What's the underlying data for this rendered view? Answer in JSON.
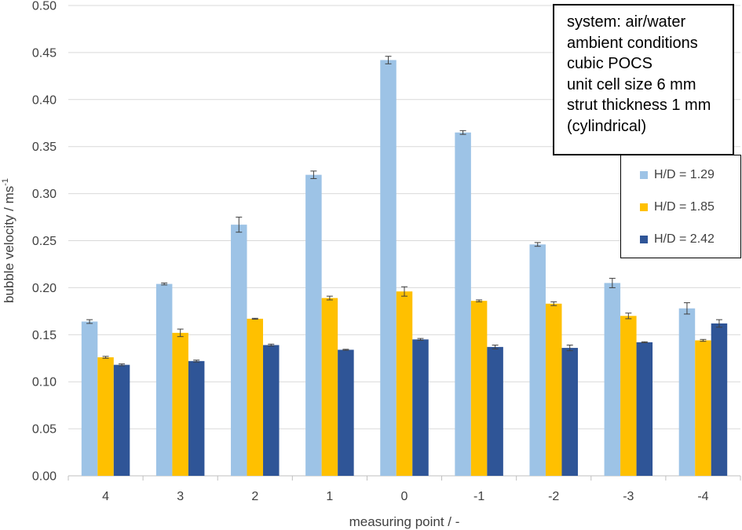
{
  "chart_data": {
    "type": "bar",
    "title": "",
    "xlabel": "measuring point / -",
    "ylabel": "bubble velocity / ms",
    "ylabel_superscript": "-1",
    "ylim": [
      0,
      0.5
    ],
    "yticks": [
      "0.00",
      "0.05",
      "0.10",
      "0.15",
      "0.20",
      "0.25",
      "0.30",
      "0.35",
      "0.40",
      "0.45",
      "0.50"
    ],
    "categories": [
      "4",
      "3",
      "2",
      "1",
      "0",
      "-1",
      "-2",
      "-3",
      "-4"
    ],
    "grid": "horizontal",
    "legend_position": "right",
    "series": [
      {
        "name": "H/D = 1.29",
        "color": "#9dc3e6",
        "values": [
          0.164,
          0.204,
          0.267,
          0.32,
          0.442,
          0.365,
          0.246,
          0.205,
          0.178
        ],
        "errors": [
          0.002,
          0.001,
          0.008,
          0.004,
          0.004,
          0.002,
          0.002,
          0.005,
          0.006
        ]
      },
      {
        "name": "H/D = 1.85",
        "color": "#ffc000",
        "values": [
          0.126,
          0.152,
          0.167,
          0.189,
          0.196,
          0.186,
          0.183,
          0.17,
          0.144
        ],
        "errors": [
          0.001,
          0.004,
          0.0005,
          0.002,
          0.005,
          0.001,
          0.002,
          0.003,
          0.001
        ]
      },
      {
        "name": "H/D = 2.42",
        "color": "#2f5597",
        "values": [
          0.118,
          0.122,
          0.139,
          0.134,
          0.145,
          0.137,
          0.136,
          0.142,
          0.162
        ],
        "errors": [
          0.001,
          0.001,
          0.001,
          0.0005,
          0.001,
          0.002,
          0.003,
          0.0005,
          0.004
        ]
      }
    ]
  },
  "info_box": {
    "lines": [
      "system: air/water",
      "ambient conditions",
      "cubic POCS",
      "unit cell size 6 mm",
      "strut thickness 1 mm",
      "(cylindrical)"
    ]
  }
}
